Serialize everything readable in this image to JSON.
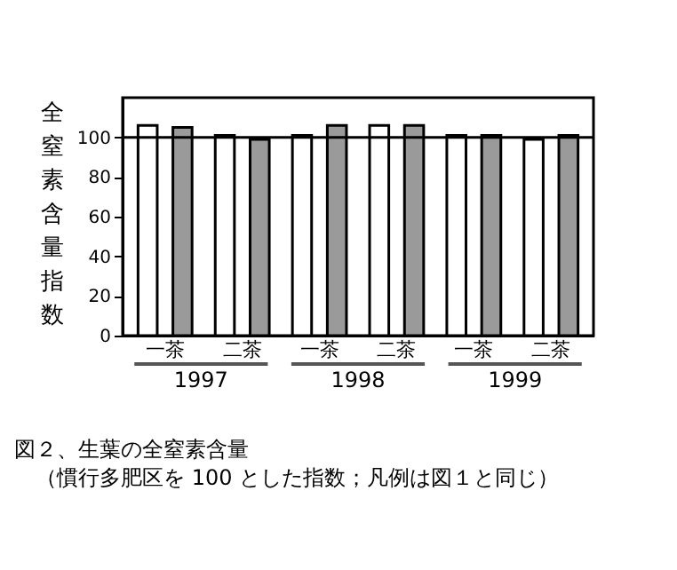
{
  "chart_data": {
    "type": "bar",
    "title": "図２、生葉の全窒素含量",
    "subtitle": "（慣行多肥区を 100 とした指数；凡例は図１と同じ）",
    "ylabel": "全窒素含量指数",
    "categories": [
      "一茶",
      "二茶",
      "一茶",
      "二茶",
      "一茶",
      "二茶"
    ],
    "series": [
      {
        "color": "#ffffff",
        "values": [
          106,
          101,
          101,
          106,
          101,
          99
        ]
      },
      {
        "color": "#9a9a9a",
        "values": [
          105,
          99,
          106,
          106,
          101,
          101
        ]
      }
    ],
    "annotations": [
      "1997",
      "1998",
      "1999"
    ],
    "ylim": [
      0,
      120
    ],
    "yticks": [
      0,
      20,
      40,
      60,
      80,
      100
    ],
    "ref_lines": [
      {
        "axis": "y",
        "value": 100
      }
    ],
    "legend": false,
    "grid": false
  }
}
